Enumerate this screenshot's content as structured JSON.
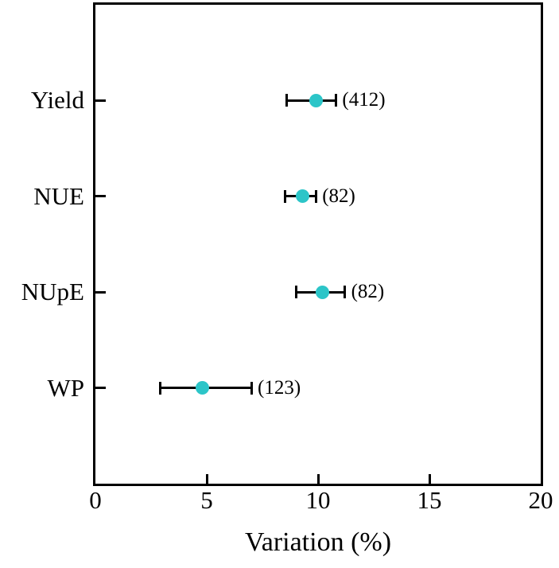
{
  "chart_data": {
    "type": "scatter",
    "subtype": "horizontal-dot-plot-with-error-bars",
    "title": "",
    "xlabel": "Variation (%)",
    "ylabel": "",
    "xlim": [
      0,
      20
    ],
    "xticks": [
      0,
      5,
      10,
      15,
      20
    ],
    "categories": [
      "Yield",
      "NUE",
      "NUpE",
      "WP"
    ],
    "points": [
      {
        "category": "Yield",
        "value": 9.9,
        "ci_low": 8.6,
        "ci_high": 10.8,
        "n_label": "(412)"
      },
      {
        "category": "NUE",
        "value": 9.3,
        "ci_low": 8.5,
        "ci_high": 9.9,
        "n_label": "(82)"
      },
      {
        "category": "NUpE",
        "value": 10.2,
        "ci_low": 9.0,
        "ci_high": 11.2,
        "n_label": "(82)"
      },
      {
        "category": "WP",
        "value": 4.8,
        "ci_low": 2.9,
        "ci_high": 7.0,
        "n_label": "(123)"
      }
    ],
    "marker_color": "#2cc5c8",
    "axis_color": "#000000",
    "background_color": "#ffffff",
    "grid": false,
    "legend": null
  }
}
